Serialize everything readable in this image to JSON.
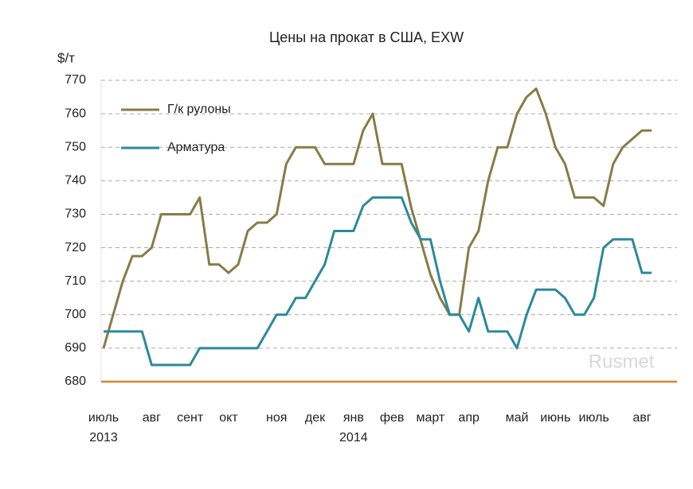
{
  "chart_data": {
    "type": "line",
    "title": "Цены на прокат в США, EXW",
    "y_label": "$/т",
    "watermark": "Rusmet",
    "categories": [
      "июль",
      null,
      null,
      null,
      null,
      "авг",
      null,
      null,
      null,
      "сент",
      null,
      null,
      null,
      "окт",
      null,
      null,
      null,
      null,
      "ноя",
      null,
      null,
      null,
      "дек",
      null,
      null,
      null,
      "янв",
      null,
      null,
      null,
      "фев",
      null,
      null,
      null,
      "март",
      null,
      null,
      null,
      "апр",
      null,
      null,
      null,
      null,
      "май",
      null,
      null,
      null,
      "июнь",
      null,
      null,
      null,
      "июль",
      null,
      null,
      null,
      null,
      "авг",
      null
    ],
    "category_groups": [
      {
        "label": "2013",
        "start": 0
      },
      {
        "label": "2014",
        "start": 26
      }
    ],
    "series": [
      {
        "name": "Г/к рулоны",
        "color": "#877c46",
        "values": [
          690,
          700,
          710,
          717.5,
          717.5,
          720,
          730,
          730,
          730,
          730,
          735,
          715,
          715,
          712.5,
          715,
          725,
          727.5,
          727.5,
          730,
          745,
          750,
          750,
          750,
          745,
          745,
          745,
          745,
          755,
          760,
          745,
          745,
          745,
          732,
          722,
          712,
          705,
          700,
          700,
          720,
          725,
          740,
          750,
          750,
          760,
          765,
          767.5,
          760,
          750,
          745,
          735,
          735,
          735,
          732.5,
          745,
          750,
          752.5,
          755,
          755
        ]
      },
      {
        "name": "Арматура",
        "color": "#2b8a99",
        "values": [
          695,
          695,
          695,
          695,
          695,
          685,
          685,
          685,
          685,
          685,
          690,
          690,
          690,
          690,
          690,
          690,
          690,
          695,
          700,
          700,
          705,
          705,
          710,
          715,
          725,
          725,
          725,
          732.5,
          735,
          735,
          735,
          735,
          727.5,
          722.5,
          722.5,
          710,
          700,
          700,
          695,
          705,
          695,
          695,
          695,
          690,
          700,
          707.5,
          707.5,
          707.5,
          705,
          700,
          700,
          705,
          720,
          722.5,
          722.5,
          722.5,
          712.5,
          712.5
        ]
      }
    ],
    "ylim": [
      680,
      770
    ],
    "yticks": [
      680,
      690,
      700,
      710,
      720,
      730,
      740,
      750,
      760,
      770
    ],
    "grid": true,
    "legend": "top-left"
  }
}
